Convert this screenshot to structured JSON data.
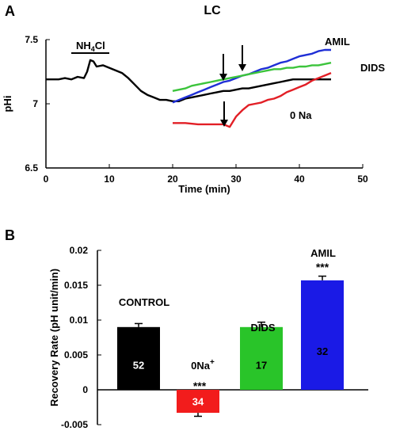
{
  "chart_data": [
    {
      "panel_label": "A",
      "type": "line",
      "title": "LC",
      "xlabel": "Time (min)",
      "ylabel": "pHi",
      "xlim": [
        0,
        50
      ],
      "ylim": [
        6.5,
        7.5
      ],
      "xticks": [
        "0",
        "10",
        "20",
        "30",
        "40",
        "50"
      ],
      "yticks": [
        "6.5",
        "7",
        "7.5"
      ],
      "grid": false,
      "colors": {
        "black": "#000000",
        "blue": "#1f2fd6",
        "green": "#3cc43c",
        "red": "#e21f26"
      },
      "annotations": {
        "pulse_bar_label": "NH",
        "pulse_bar_sub": "4",
        "pulse_bar_suffix": "Cl",
        "pulse_bar_range": [
          4,
          10
        ]
      },
      "arrows_at_min": [
        28,
        31,
        28
      ],
      "series": [
        {
          "name": "",
          "color": "black",
          "x": [
            0,
            1,
            2,
            3,
            4,
            5,
            6,
            6.5,
            7,
            7.5,
            8,
            9,
            10,
            11,
            12,
            13,
            14,
            15,
            16,
            17,
            18,
            19,
            20,
            21,
            22,
            23,
            24,
            25,
            26,
            27,
            28,
            29,
            30,
            31,
            32,
            33,
            34,
            35,
            36,
            37,
            38,
            39,
            40,
            41,
            42,
            43,
            44,
            45
          ],
          "y": [
            7.19,
            7.19,
            7.19,
            7.2,
            7.19,
            7.21,
            7.2,
            7.25,
            7.34,
            7.33,
            7.29,
            7.3,
            7.28,
            7.26,
            7.24,
            7.2,
            7.15,
            7.1,
            7.07,
            7.05,
            7.03,
            7.03,
            7.02,
            7.02,
            7.04,
            7.05,
            7.06,
            7.07,
            7.08,
            7.09,
            7.1,
            7.1,
            7.11,
            7.12,
            7.12,
            7.13,
            7.14,
            7.15,
            7.16,
            7.17,
            7.18,
            7.19,
            7.19,
            7.19,
            7.19,
            7.19,
            7.19,
            7.19
          ]
        },
        {
          "name": "AMIL",
          "color": "blue",
          "x": [
            20,
            21,
            22,
            23,
            24,
            25,
            26,
            27,
            28,
            29,
            30,
            31,
            32,
            33,
            34,
            35,
            36,
            37,
            38,
            39,
            40,
            41,
            42,
            43,
            44,
            45
          ],
          "y": [
            7.01,
            7.03,
            7.05,
            7.07,
            7.09,
            7.11,
            7.13,
            7.15,
            7.17,
            7.18,
            7.2,
            7.22,
            7.23,
            7.25,
            7.27,
            7.28,
            7.3,
            7.32,
            7.33,
            7.35,
            7.37,
            7.38,
            7.39,
            7.41,
            7.42,
            7.42
          ]
        },
        {
          "name": "DIDS",
          "color": "green",
          "x": [
            20,
            21,
            22,
            23,
            24,
            25,
            26,
            27,
            28,
            29,
            30,
            31,
            32,
            33,
            34,
            35,
            36,
            37,
            38,
            39,
            40,
            41,
            42,
            43,
            44,
            45
          ],
          "y": [
            7.1,
            7.11,
            7.12,
            7.14,
            7.15,
            7.16,
            7.17,
            7.18,
            7.19,
            7.2,
            7.21,
            7.22,
            7.23,
            7.24,
            7.25,
            7.26,
            7.27,
            7.27,
            7.28,
            7.28,
            7.29,
            7.29,
            7.3,
            7.3,
            7.31,
            7.32
          ]
        },
        {
          "name": "0 Na",
          "color": "red",
          "x": [
            20,
            22,
            24,
            26,
            27,
            28,
            28.5,
            29,
            30,
            31,
            32,
            33,
            34,
            35,
            36,
            37,
            38,
            39,
            40,
            41,
            42,
            43,
            44,
            45
          ],
          "y": [
            6.85,
            6.85,
            6.84,
            6.84,
            6.84,
            6.84,
            6.83,
            6.82,
            6.9,
            6.95,
            6.99,
            7.0,
            7.01,
            7.03,
            7.04,
            7.06,
            7.09,
            7.11,
            7.13,
            7.15,
            7.18,
            7.2,
            7.22,
            7.24
          ]
        }
      ]
    },
    {
      "panel_label": "B",
      "type": "bar",
      "title": "",
      "xlabel": "",
      "ylabel": "Recovery Rate (pH unit/min)",
      "ylim": [
        -0.005,
        0.02
      ],
      "yticks": [
        "-0.005",
        "0",
        "0.005",
        "0.01",
        "0.015",
        "0.02"
      ],
      "grid": false,
      "categories": [
        "CONTROL",
        "0Na",
        "DIDS",
        "AMIL"
      ],
      "category_superscripts": [
        "",
        "+",
        "",
        ""
      ],
      "values": [
        0.009,
        -0.0033,
        0.009,
        0.0157
      ],
      "errors": [
        0.0005,
        0.0005,
        0.0007,
        0.0006
      ],
      "n_labels": [
        "52",
        "34",
        "17",
        "32"
      ],
      "significance": [
        "",
        "***",
        "",
        "***"
      ],
      "colors": [
        "#000000",
        "#f21c1c",
        "#29c429",
        "#1a1ae6"
      ]
    }
  ]
}
